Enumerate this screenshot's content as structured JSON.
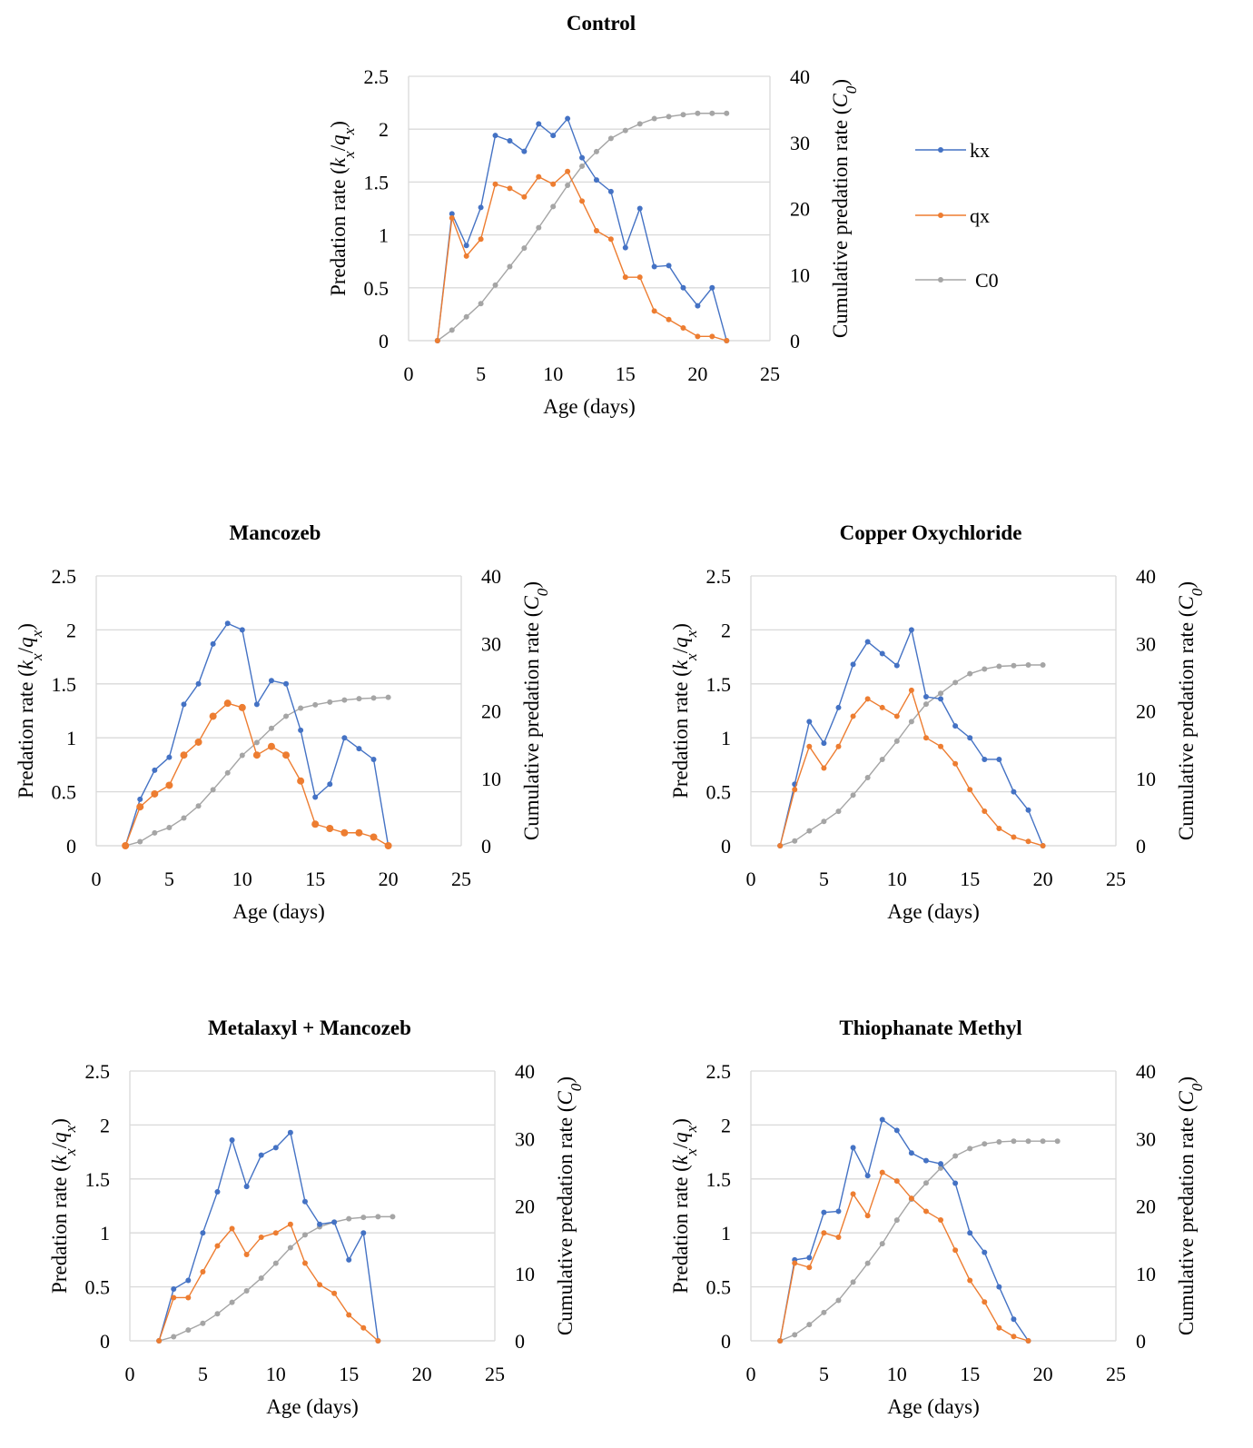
{
  "chart_data": [
    {
      "type": "line",
      "title": "Control",
      "xlabel": "Age (days)",
      "ylabel": "Predation rate (kx/qx)",
      "y2label": "Cumulative predation rate (C0)",
      "xlim": [
        0,
        25
      ],
      "ylim": [
        0,
        2.5
      ],
      "y2lim": [
        0,
        40
      ],
      "xticks": [
        "0",
        "5",
        "10",
        "15",
        "20",
        "25"
      ],
      "yticks": [
        "0",
        "0.5",
        "1",
        "1.5",
        "2",
        "2.5"
      ],
      "y2ticks": [
        "0",
        "10",
        "20",
        "30",
        "40"
      ],
      "grid": true,
      "legend": "right",
      "series": [
        {
          "name": "kx",
          "axis": "left",
          "color": "#4472C4",
          "x": [
            2,
            3,
            4,
            5,
            6,
            7,
            8,
            9,
            10,
            11,
            12,
            13,
            14,
            15,
            16,
            17,
            18,
            19,
            20,
            21,
            22
          ],
          "values": [
            0,
            1.2,
            0.9,
            1.26,
            1.94,
            1.89,
            1.79,
            2.05,
            1.94,
            2.1,
            1.73,
            1.52,
            1.41,
            0.88,
            1.25,
            0.7,
            0.71,
            0.5,
            0.33,
            0.5,
            0
          ]
        },
        {
          "name": "qx",
          "axis": "left",
          "color": "#ED7D31",
          "x": [
            2,
            3,
            4,
            5,
            6,
            7,
            8,
            9,
            10,
            11,
            12,
            13,
            14,
            15,
            16,
            17,
            18,
            19,
            20,
            21,
            22
          ],
          "values": [
            0,
            1.16,
            0.8,
            0.96,
            1.48,
            1.44,
            1.36,
            1.55,
            1.48,
            1.6,
            1.32,
            1.04,
            0.96,
            0.6,
            0.6,
            0.28,
            0.2,
            0.12,
            0.04,
            0.04,
            0
          ]
        },
        {
          "name": "C0",
          "axis": "right",
          "color": "#A5A5A5",
          "x": [
            2,
            3,
            4,
            5,
            6,
            7,
            8,
            9,
            10,
            11,
            12,
            13,
            14,
            15,
            16,
            17,
            18,
            19,
            20,
            21,
            22
          ],
          "values": [
            0,
            1.6,
            3.6,
            5.6,
            8.4,
            11.2,
            14,
            17.1,
            20.3,
            23.5,
            26.4,
            28.6,
            30.6,
            31.8,
            32.8,
            33.6,
            33.9,
            34.2,
            34.4,
            34.4,
            34.4
          ]
        }
      ]
    },
    {
      "type": "line",
      "title": "Mancozeb",
      "xlabel": "Age (days)",
      "ylabel": "Predation rate (kx/qx)",
      "y2label": "Cumulative predation rate (C0)",
      "xlim": [
        0,
        25
      ],
      "ylim": [
        0,
        2.5
      ],
      "y2lim": [
        0,
        40
      ],
      "xticks": [
        "0",
        "5",
        "10",
        "15",
        "20",
        "25"
      ],
      "yticks": [
        "0",
        "0.5",
        "1",
        "1.5",
        "2",
        "2.5"
      ],
      "y2ticks": [
        "0",
        "10",
        "20",
        "30",
        "40"
      ],
      "grid": true,
      "series": [
        {
          "name": "kx",
          "axis": "left",
          "color": "#4472C4",
          "x": [
            2,
            3,
            4,
            5,
            6,
            7,
            8,
            9,
            10,
            11,
            12,
            13,
            14,
            15,
            16,
            17,
            18,
            19,
            20
          ],
          "values": [
            0,
            0.43,
            0.7,
            0.82,
            1.31,
            1.5,
            1.87,
            2.06,
            2.0,
            1.31,
            1.53,
            1.5,
            1.07,
            0.45,
            0.57,
            1.0,
            0.9,
            0.8,
            0
          ]
        },
        {
          "name": "qx",
          "axis": "left",
          "color": "#ED7D31",
          "x": [
            2,
            3,
            4,
            5,
            6,
            7,
            8,
            9,
            10,
            11,
            12,
            13,
            14,
            15,
            16,
            17,
            18,
            19,
            20
          ],
          "values": [
            0,
            0.36,
            0.48,
            0.56,
            0.84,
            0.96,
            1.2,
            1.32,
            1.28,
            0.84,
            0.92,
            0.84,
            0.6,
            0.2,
            0.16,
            0.12,
            0.12,
            0.08,
            0
          ]
        },
        {
          "name": "C0",
          "axis": "right",
          "color": "#A5A5A5",
          "x": [
            2,
            3,
            4,
            5,
            6,
            7,
            8,
            9,
            10,
            11,
            12,
            13,
            14,
            15,
            16,
            17,
            18,
            19,
            20
          ],
          "values": [
            0,
            0.6,
            1.9,
            2.7,
            4.1,
            5.9,
            8.3,
            10.8,
            13.4,
            15.3,
            17.4,
            19.2,
            20.4,
            20.9,
            21.3,
            21.6,
            21.8,
            21.9,
            22.0
          ]
        }
      ]
    },
    {
      "type": "line",
      "title": "Copper Oxychloride",
      "xlabel": "Age (days)",
      "ylabel": "Predation rate (kx/qx)",
      "y2label": "Cumulative predation rate (C0)",
      "xlim": [
        0,
        25
      ],
      "ylim": [
        0,
        2.5
      ],
      "y2lim": [
        0,
        40
      ],
      "xticks": [
        "0",
        "5",
        "10",
        "15",
        "20",
        "25"
      ],
      "yticks": [
        "0",
        "0.5",
        "1",
        "1.5",
        "2",
        "2.5"
      ],
      "y2ticks": [
        "0",
        "10",
        "20",
        "30",
        "40"
      ],
      "grid": true,
      "series": [
        {
          "name": "kx",
          "axis": "left",
          "color": "#4472C4",
          "x": [
            2,
            3,
            4,
            5,
            6,
            7,
            8,
            9,
            10,
            11,
            12,
            13,
            14,
            15,
            16,
            17,
            18,
            19,
            20
          ],
          "values": [
            0,
            0.57,
            1.15,
            0.95,
            1.28,
            1.68,
            1.89,
            1.78,
            1.67,
            2.0,
            1.38,
            1.36,
            1.11,
            1.0,
            0.8,
            0.8,
            0.5,
            0.33,
            0
          ]
        },
        {
          "name": "qx",
          "axis": "left",
          "color": "#ED7D31",
          "x": [
            2,
            3,
            4,
            5,
            6,
            7,
            8,
            9,
            10,
            11,
            12,
            13,
            14,
            15,
            16,
            17,
            18,
            19,
            20
          ],
          "values": [
            0,
            0.52,
            0.92,
            0.72,
            0.92,
            1.2,
            1.36,
            1.28,
            1.2,
            1.44,
            1.0,
            0.92,
            0.76,
            0.52,
            0.32,
            0.16,
            0.08,
            0.04,
            0
          ]
        },
        {
          "name": "C0",
          "axis": "right",
          "color": "#A5A5A5",
          "x": [
            2,
            3,
            4,
            5,
            6,
            7,
            8,
            9,
            10,
            11,
            12,
            13,
            14,
            15,
            16,
            17,
            18,
            19,
            20
          ],
          "values": [
            0,
            0.7,
            2.2,
            3.6,
            5.1,
            7.5,
            10.1,
            12.8,
            15.5,
            18.4,
            21.0,
            22.6,
            24.2,
            25.5,
            26.2,
            26.6,
            26.7,
            26.8,
            26.8
          ]
        }
      ]
    },
    {
      "type": "line",
      "title": "Metalaxyl + Mancozeb",
      "xlabel": "Age (days)",
      "ylabel": "Predation rate (kx/qx)",
      "y2label": "Cumulative predation rate (C0)",
      "xlim": [
        0,
        25
      ],
      "ylim": [
        0,
        2.5
      ],
      "y2lim": [
        0,
        40
      ],
      "xticks": [
        "0",
        "5",
        "10",
        "15",
        "20",
        "25"
      ],
      "yticks": [
        "0",
        "0.5",
        "1",
        "1.5",
        "2",
        "2.5"
      ],
      "y2ticks": [
        "0",
        "10",
        "20",
        "30",
        "40"
      ],
      "grid": true,
      "series": [
        {
          "name": "kx",
          "axis": "left",
          "color": "#4472C4",
          "x": [
            2,
            3,
            4,
            5,
            6,
            7,
            8,
            9,
            10,
            11,
            12,
            13,
            14,
            15,
            16,
            17
          ],
          "values": [
            0,
            0.48,
            0.56,
            1.0,
            1.38,
            1.86,
            1.43,
            1.72,
            1.79,
            1.93,
            1.29,
            1.08,
            1.1,
            0.75,
            1.0,
            0
          ]
        },
        {
          "name": "qx",
          "axis": "left",
          "color": "#ED7D31",
          "x": [
            2,
            3,
            4,
            5,
            6,
            7,
            8,
            9,
            10,
            11,
            12,
            13,
            14,
            15,
            16,
            17
          ],
          "values": [
            0,
            0.4,
            0.4,
            0.64,
            0.88,
            1.04,
            0.8,
            0.96,
            1.0,
            1.08,
            0.72,
            0.52,
            0.44,
            0.24,
            0.12,
            0
          ]
        },
        {
          "name": "C0",
          "axis": "right",
          "color": "#A5A5A5",
          "x": [
            2,
            3,
            4,
            5,
            6,
            7,
            8,
            9,
            10,
            11,
            12,
            13,
            14,
            15,
            16,
            17,
            18
          ],
          "values": [
            0,
            0.6,
            1.6,
            2.6,
            4.0,
            5.7,
            7.4,
            9.3,
            11.5,
            13.8,
            15.7,
            16.9,
            17.6,
            18.1,
            18.3,
            18.4,
            18.4
          ]
        }
      ]
    },
    {
      "type": "line",
      "title": "Thiophanate Methyl",
      "xlabel": "Age (days)",
      "ylabel": "Predation rate (kx/qx)",
      "y2label": "Cumulative predation rate (C0)",
      "xlim": [
        0,
        25
      ],
      "ylim": [
        0,
        2.5
      ],
      "y2lim": [
        0,
        40
      ],
      "xticks": [
        "0",
        "5",
        "10",
        "15",
        "20",
        "25"
      ],
      "yticks": [
        "0",
        "0.5",
        "1",
        "1.5",
        "2",
        "2.5"
      ],
      "y2ticks": [
        "0",
        "10",
        "20",
        "30",
        "40"
      ],
      "grid": true,
      "series": [
        {
          "name": "kx",
          "axis": "left",
          "color": "#4472C4",
          "x": [
            2,
            3,
            4,
            5,
            6,
            7,
            8,
            9,
            10,
            11,
            12,
            13,
            14,
            15,
            16,
            17,
            18,
            19
          ],
          "values": [
            0,
            0.75,
            0.77,
            1.19,
            1.2,
            1.79,
            1.53,
            2.05,
            1.95,
            1.74,
            1.67,
            1.64,
            1.46,
            1.0,
            0.82,
            0.5,
            0.2,
            0
          ]
        },
        {
          "name": "qx",
          "axis": "left",
          "color": "#ED7D31",
          "x": [
            2,
            3,
            4,
            5,
            6,
            7,
            8,
            9,
            10,
            11,
            12,
            13,
            14,
            15,
            16,
            17,
            18,
            19
          ],
          "values": [
            0,
            0.72,
            0.68,
            1.0,
            0.96,
            1.36,
            1.16,
            1.56,
            1.48,
            1.32,
            1.2,
            1.12,
            0.84,
            0.56,
            0.36,
            0.12,
            0.04,
            0
          ]
        },
        {
          "name": "C0",
          "axis": "right",
          "color": "#A5A5A5",
          "x": [
            2,
            3,
            4,
            5,
            6,
            7,
            8,
            9,
            10,
            11,
            12,
            13,
            14,
            15,
            16,
            17,
            18,
            19,
            20,
            21
          ],
          "values": [
            0,
            0.9,
            2.4,
            4.2,
            6.0,
            8.7,
            11.5,
            14.4,
            17.9,
            21.0,
            23.4,
            25.6,
            27.4,
            28.5,
            29.2,
            29.5,
            29.6,
            29.6,
            29.6,
            29.6
          ]
        }
      ]
    }
  ]
}
